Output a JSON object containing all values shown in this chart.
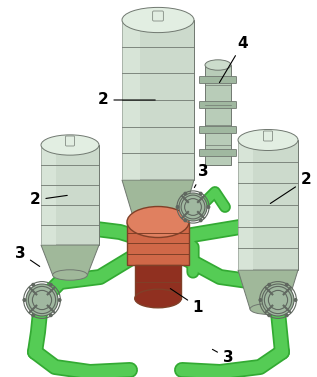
{
  "figsize": [
    3.17,
    3.77
  ],
  "dpi": 100,
  "bg_color": "#ffffff",
  "pipe_color": "#55cc55",
  "pipe_dark": "#33aa33",
  "pipe_lw": 9,
  "vessel_body": "#c8d8c0",
  "vessel_light": "#e0eedd",
  "vessel_dark": "#a0b898",
  "vessel_edge": "#707870",
  "reactor_mid": "#d06848",
  "reactor_light": "#e08060",
  "reactor_dark": "#903020",
  "reactor_edge": "#804028",
  "pressurizer_body": "#b8ccb8",
  "pressurizer_light": "#ccdccc",
  "pump_body": "#a0b8a0",
  "pump_edge": "#606860",
  "label_color": "#000000",
  "label_fontsize": 11
}
